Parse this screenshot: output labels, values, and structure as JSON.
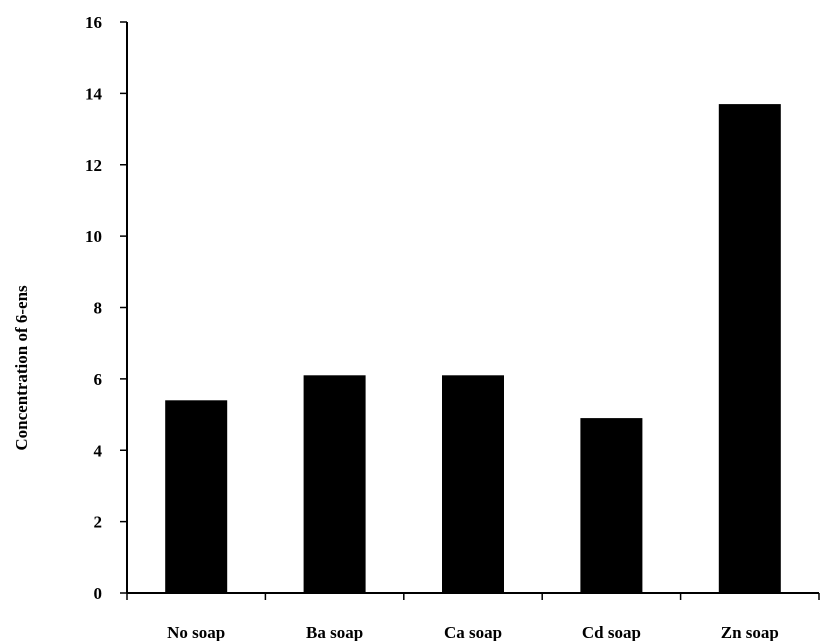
{
  "chart_data": {
    "type": "bar",
    "title": "",
    "xlabel": "",
    "ylabel": "Concentration of 6-ens",
    "categories": [
      "No soap",
      "Ba soap",
      "Ca soap",
      "Cd soap",
      "Zn soap"
    ],
    "values": [
      5.4,
      6.1,
      6.1,
      4.9,
      13.7
    ],
    "ylim": [
      0,
      16
    ],
    "yticks": [
      "0",
      "2",
      "4",
      "6",
      "8",
      "10",
      "12",
      "14",
      "16"
    ],
    "grid": false,
    "bar_color": "#000000",
    "legend": "none"
  }
}
